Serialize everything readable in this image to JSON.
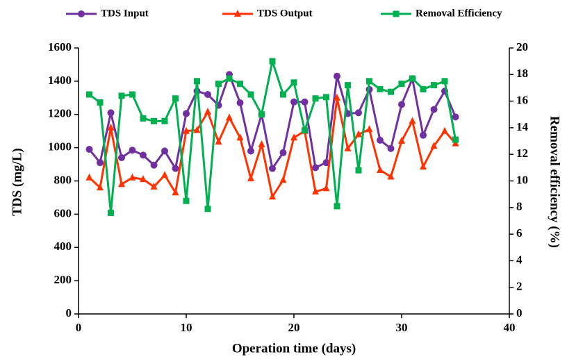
{
  "chart_data": {
    "type": "line",
    "x_label": "Operation time (days)",
    "y_label": "TDS (mg/L)",
    "y2_label": "Removal efficiency (%)",
    "legend": "top",
    "grid": false,
    "x": [
      1,
      2,
      3,
      4,
      5,
      6,
      7,
      8,
      9,
      10,
      11,
      12,
      13,
      14,
      15,
      16,
      17,
      18,
      19,
      20,
      21,
      22,
      23,
      24,
      25,
      26,
      27,
      28,
      29,
      30,
      31,
      32,
      33,
      34,
      35
    ],
    "xlim": [
      0,
      40
    ],
    "xticks": [
      0,
      10,
      20,
      30,
      40
    ],
    "ylim": [
      0,
      1600
    ],
    "yticks": [
      0,
      200,
      400,
      600,
      800,
      1000,
      1200,
      1400,
      1600
    ],
    "y2lim": [
      0,
      20
    ],
    "y2ticks": [
      0,
      2,
      4,
      6,
      8,
      10,
      12,
      14,
      16,
      18,
      20
    ],
    "series": [
      {
        "name": "TDS Input",
        "color": "#7030a0",
        "marker": "circle",
        "values": [
          990,
          910,
          1210,
          940,
          985,
          955,
          895,
          980,
          875,
          1205,
          1340,
          1320,
          1255,
          1440,
          1270,
          980,
          1200,
          875,
          970,
          1275,
          1275,
          880,
          910,
          1430,
          1205,
          1210,
          1350,
          1045,
          995,
          1260,
          1415,
          1075,
          1230,
          1340,
          1185
        ]
      },
      {
        "name": "TDS Output",
        "color": "#ff3300",
        "marker": "triangle",
        "values": [
          820,
          760,
          1120,
          780,
          820,
          810,
          765,
          835,
          730,
          1100,
          1105,
          1215,
          1035,
          1180,
          1060,
          815,
          1020,
          705,
          805,
          1060,
          1100,
          735,
          755,
          1300,
          995,
          1080,
          1110,
          865,
          825,
          1040,
          1160,
          885,
          1010,
          1100,
          1025
        ]
      },
      {
        "name": "Removal Efficiency",
        "color": "#00b050",
        "marker": "square",
        "axis": "y2",
        "values": [
          16.5,
          15.9,
          7.6,
          16.4,
          16.5,
          14.7,
          14.5,
          14.5,
          16.2,
          8.5,
          17.5,
          7.9,
          17.3,
          17.7,
          17.3,
          16.5,
          15.0,
          19.0,
          16.5,
          17.4,
          13.8,
          16.2,
          16.3,
          8.1,
          17.2,
          10.8,
          17.5,
          16.9,
          16.7,
          17.3,
          17.7,
          16.9,
          17.2,
          17.5,
          13.1
        ]
      }
    ]
  }
}
